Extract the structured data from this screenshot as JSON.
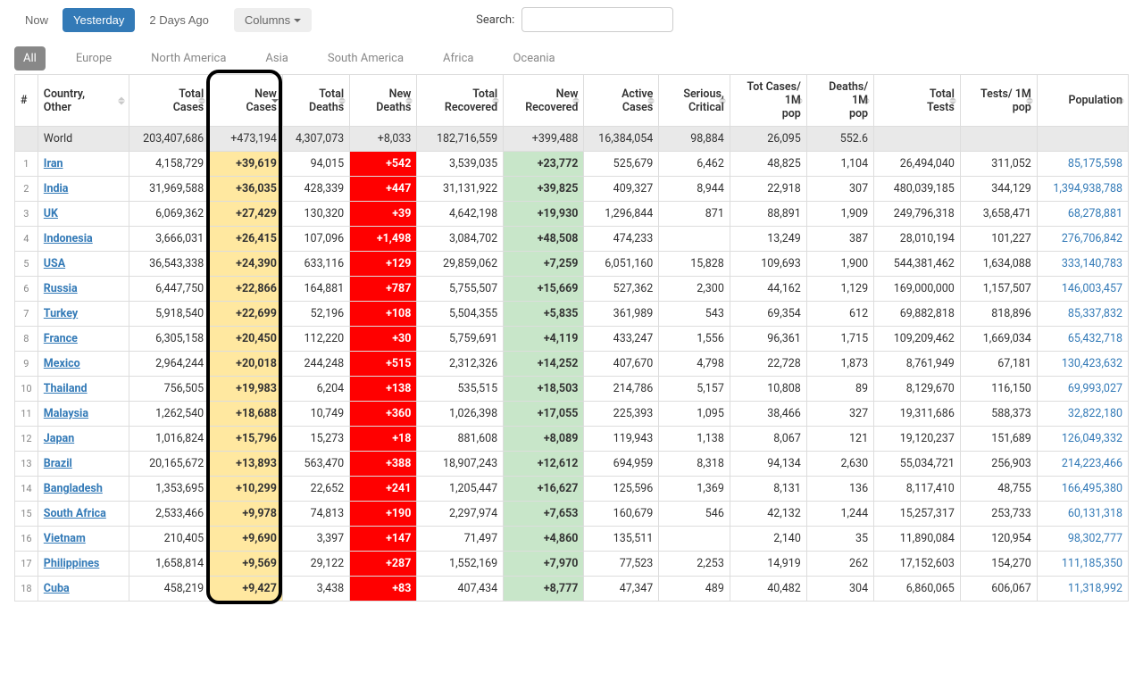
{
  "controls": {
    "now": "Now",
    "yesterday": "Yesterday",
    "two_days": "2 Days Ago",
    "columns": "Columns",
    "search_label": "Search:",
    "search_value": ""
  },
  "tabs": [
    "All",
    "Europe",
    "North America",
    "Asia",
    "South America",
    "Africa",
    "Oceania"
  ],
  "active_tab": 0,
  "columns": [
    {
      "label": "#",
      "w": 24
    },
    {
      "label": "Country, Other",
      "w": 95
    },
    {
      "label": "Total Cases",
      "w": 84
    },
    {
      "label": "New Cases",
      "w": 76,
      "sorted": true
    },
    {
      "label": "Total Deaths",
      "w": 70
    },
    {
      "label": "New Deaths",
      "w": 70
    },
    {
      "label": "Total Recovered",
      "w": 90
    },
    {
      "label": "New Recovered",
      "w": 84
    },
    {
      "label": "Active Cases",
      "w": 78
    },
    {
      "label": "Serious, Critical",
      "w": 74
    },
    {
      "label": "Tot Cases/ 1M pop",
      "w": 80
    },
    {
      "label": "Deaths/ 1M pop",
      "w": 70
    },
    {
      "label": "Total Tests",
      "w": 90
    },
    {
      "label": "Tests/ 1M pop",
      "w": 80
    },
    {
      "label": "Population",
      "w": 95
    }
  ],
  "world": {
    "label": "World",
    "total_cases": "203,407,686",
    "new_cases": "+473,194",
    "total_deaths": "4,307,073",
    "new_deaths": "+8,033",
    "total_recovered": "182,716,559",
    "new_recovered": "+399,488",
    "active_cases": "16,384,054",
    "critical": "98,884",
    "cases_1m": "26,095",
    "deaths_1m": "552.6",
    "total_tests": "",
    "tests_1m": "",
    "population": ""
  },
  "rows": [
    {
      "n": "1",
      "country": "Iran",
      "total_cases": "4,158,729",
      "new_cases": "+39,619",
      "total_deaths": "94,015",
      "new_deaths": "+542",
      "total_recovered": "3,539,035",
      "new_recovered": "+23,772",
      "active": "525,679",
      "critical": "6,462",
      "cases_1m": "48,825",
      "deaths_1m": "1,104",
      "tests": "26,494,040",
      "tests_1m": "311,052",
      "pop": "85,175,598"
    },
    {
      "n": "2",
      "country": "India",
      "total_cases": "31,969,588",
      "new_cases": "+36,035",
      "total_deaths": "428,339",
      "new_deaths": "+447",
      "total_recovered": "31,131,922",
      "new_recovered": "+39,825",
      "active": "409,327",
      "critical": "8,944",
      "cases_1m": "22,918",
      "deaths_1m": "307",
      "tests": "480,039,185",
      "tests_1m": "344,129",
      "pop": "1,394,938,788"
    },
    {
      "n": "3",
      "country": "UK",
      "total_cases": "6,069,362",
      "new_cases": "+27,429",
      "total_deaths": "130,320",
      "new_deaths": "+39",
      "total_recovered": "4,642,198",
      "new_recovered": "+19,930",
      "active": "1,296,844",
      "critical": "871",
      "cases_1m": "88,891",
      "deaths_1m": "1,909",
      "tests": "249,796,318",
      "tests_1m": "3,658,471",
      "pop": "68,278,881"
    },
    {
      "n": "4",
      "country": "Indonesia",
      "total_cases": "3,666,031",
      "new_cases": "+26,415",
      "total_deaths": "107,096",
      "new_deaths": "+1,498",
      "total_recovered": "3,084,702",
      "new_recovered": "+48,508",
      "active": "474,233",
      "critical": "",
      "cases_1m": "13,249",
      "deaths_1m": "387",
      "tests": "28,010,194",
      "tests_1m": "101,227",
      "pop": "276,706,842"
    },
    {
      "n": "5",
      "country": "USA",
      "total_cases": "36,543,338",
      "new_cases": "+24,390",
      "total_deaths": "633,116",
      "new_deaths": "+129",
      "total_recovered": "29,859,062",
      "new_recovered": "+7,259",
      "active": "6,051,160",
      "critical": "15,828",
      "cases_1m": "109,693",
      "deaths_1m": "1,900",
      "tests": "544,381,462",
      "tests_1m": "1,634,088",
      "pop": "333,140,783"
    },
    {
      "n": "6",
      "country": "Russia",
      "total_cases": "6,447,750",
      "new_cases": "+22,866",
      "total_deaths": "164,881",
      "new_deaths": "+787",
      "total_recovered": "5,755,507",
      "new_recovered": "+15,669",
      "active": "527,362",
      "critical": "2,300",
      "cases_1m": "44,162",
      "deaths_1m": "1,129",
      "tests": "169,000,000",
      "tests_1m": "1,157,507",
      "pop": "146,003,457"
    },
    {
      "n": "7",
      "country": "Turkey",
      "total_cases": "5,918,540",
      "new_cases": "+22,699",
      "total_deaths": "52,196",
      "new_deaths": "+108",
      "total_recovered": "5,504,355",
      "new_recovered": "+5,835",
      "active": "361,989",
      "critical": "543",
      "cases_1m": "69,354",
      "deaths_1m": "612",
      "tests": "69,882,818",
      "tests_1m": "818,896",
      "pop": "85,337,832"
    },
    {
      "n": "8",
      "country": "France",
      "total_cases": "6,305,158",
      "new_cases": "+20,450",
      "total_deaths": "112,220",
      "new_deaths": "+30",
      "total_recovered": "5,759,691",
      "new_recovered": "+4,119",
      "active": "433,247",
      "critical": "1,556",
      "cases_1m": "96,361",
      "deaths_1m": "1,715",
      "tests": "109,209,462",
      "tests_1m": "1,669,034",
      "pop": "65,432,718"
    },
    {
      "n": "9",
      "country": "Mexico",
      "total_cases": "2,964,244",
      "new_cases": "+20,018",
      "total_deaths": "244,248",
      "new_deaths": "+515",
      "total_recovered": "2,312,326",
      "new_recovered": "+14,252",
      "active": "407,670",
      "critical": "4,798",
      "cases_1m": "22,728",
      "deaths_1m": "1,873",
      "tests": "8,761,949",
      "tests_1m": "67,181",
      "pop": "130,423,632"
    },
    {
      "n": "10",
      "country": "Thailand",
      "total_cases": "756,505",
      "new_cases": "+19,983",
      "total_deaths": "6,204",
      "new_deaths": "+138",
      "total_recovered": "535,515",
      "new_recovered": "+18,503",
      "active": "214,786",
      "critical": "5,157",
      "cases_1m": "10,808",
      "deaths_1m": "89",
      "tests": "8,129,670",
      "tests_1m": "116,150",
      "pop": "69,993,027"
    },
    {
      "n": "11",
      "country": "Malaysia",
      "total_cases": "1,262,540",
      "new_cases": "+18,688",
      "total_deaths": "10,749",
      "new_deaths": "+360",
      "total_recovered": "1,026,398",
      "new_recovered": "+17,055",
      "active": "225,393",
      "critical": "1,095",
      "cases_1m": "38,466",
      "deaths_1m": "327",
      "tests": "19,311,686",
      "tests_1m": "588,373",
      "pop": "32,822,180"
    },
    {
      "n": "12",
      "country": "Japan",
      "total_cases": "1,016,824",
      "new_cases": "+15,796",
      "total_deaths": "15,273",
      "new_deaths": "+18",
      "total_recovered": "881,608",
      "new_recovered": "+8,089",
      "active": "119,943",
      "critical": "1,138",
      "cases_1m": "8,067",
      "deaths_1m": "121",
      "tests": "19,120,237",
      "tests_1m": "151,689",
      "pop": "126,049,332"
    },
    {
      "n": "13",
      "country": "Brazil",
      "total_cases": "20,165,672",
      "new_cases": "+13,893",
      "total_deaths": "563,470",
      "new_deaths": "+388",
      "total_recovered": "18,907,243",
      "new_recovered": "+12,612",
      "active": "694,959",
      "critical": "8,318",
      "cases_1m": "94,134",
      "deaths_1m": "2,630",
      "tests": "55,034,721",
      "tests_1m": "256,903",
      "pop": "214,223,466"
    },
    {
      "n": "14",
      "country": "Bangladesh",
      "total_cases": "1,353,695",
      "new_cases": "+10,299",
      "total_deaths": "22,652",
      "new_deaths": "+241",
      "total_recovered": "1,205,447",
      "new_recovered": "+16,627",
      "active": "125,596",
      "critical": "1,369",
      "cases_1m": "8,131",
      "deaths_1m": "136",
      "tests": "8,117,410",
      "tests_1m": "48,755",
      "pop": "166,495,380"
    },
    {
      "n": "15",
      "country": "South Africa",
      "total_cases": "2,533,466",
      "new_cases": "+9,978",
      "total_deaths": "74,813",
      "new_deaths": "+190",
      "total_recovered": "2,297,974",
      "new_recovered": "+7,653",
      "active": "160,679",
      "critical": "546",
      "cases_1m": "42,132",
      "deaths_1m": "1,244",
      "tests": "15,257,317",
      "tests_1m": "253,733",
      "pop": "60,131,318"
    },
    {
      "n": "16",
      "country": "Vietnam",
      "total_cases": "210,405",
      "new_cases": "+9,690",
      "total_deaths": "3,397",
      "new_deaths": "+147",
      "total_recovered": "71,497",
      "new_recovered": "+4,860",
      "active": "135,511",
      "critical": "",
      "cases_1m": "2,140",
      "deaths_1m": "35",
      "tests": "11,890,084",
      "tests_1m": "120,954",
      "pop": "98,302,777"
    },
    {
      "n": "17",
      "country": "Philippines",
      "total_cases": "1,658,814",
      "new_cases": "+9,569",
      "total_deaths": "29,122",
      "new_deaths": "+287",
      "total_recovered": "1,552,169",
      "new_recovered": "+7,970",
      "active": "77,523",
      "critical": "2,253",
      "cases_1m": "14,919",
      "deaths_1m": "262",
      "tests": "17,152,603",
      "tests_1m": "154,270",
      "pop": "111,185,350"
    },
    {
      "n": "18",
      "country": "Cuba",
      "total_cases": "458,219",
      "new_cases": "+9,427",
      "total_deaths": "3,438",
      "new_deaths": "+83",
      "total_recovered": "407,434",
      "new_recovered": "+8,777",
      "active": "47,347",
      "critical": "489",
      "cases_1m": "40,482",
      "deaths_1m": "304",
      "tests": "6,860,065",
      "tests_1m": "606,067",
      "pop": "11,318,992"
    }
  ],
  "styling": {
    "new_cases_bg": "#ffe8a0",
    "new_deaths_bg": "#ff0000",
    "new_deaths_fg": "#ffffff",
    "new_recovered_bg": "#c8e6c9",
    "link_color": "#337ab7",
    "active_btn_bg": "#337ab7",
    "world_row_bg": "#e9e9e9",
    "highlight_border": "#000000"
  }
}
